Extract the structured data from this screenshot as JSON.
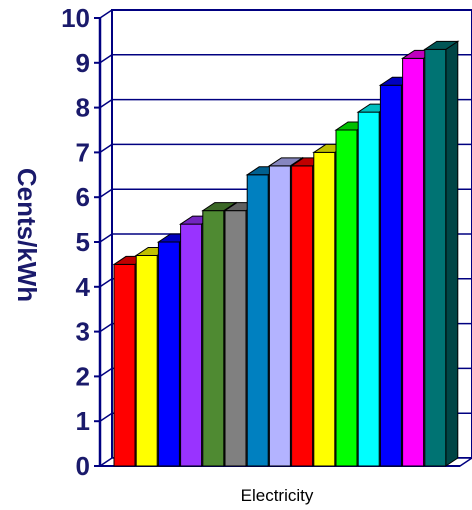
{
  "chart_data": {
    "type": "bar",
    "ylabel": "Cents/kWh",
    "xlabel": "",
    "category_label": "Electricity",
    "ylim": [
      0,
      10
    ],
    "yticks": [
      "0",
      "1",
      "2",
      "3",
      "4",
      "5",
      "6",
      "7",
      "8",
      "9",
      "10"
    ],
    "grid": true,
    "bars": [
      {
        "value": 4.5,
        "color": "#ff0000"
      },
      {
        "value": 4.7,
        "color": "#ffff00"
      },
      {
        "value": 5.0,
        "color": "#0000ff"
      },
      {
        "value": 5.4,
        "color": "#9933ff"
      },
      {
        "value": 5.7,
        "color": "#4f8a32"
      },
      {
        "value": 5.7,
        "color": "#808080"
      },
      {
        "value": 6.5,
        "color": "#0080c0"
      },
      {
        "value": 6.7,
        "color": "#b3b3ff"
      },
      {
        "value": 6.7,
        "color": "#ff0000"
      },
      {
        "value": 7.0,
        "color": "#ffff00"
      },
      {
        "value": 7.5,
        "color": "#00ff00"
      },
      {
        "value": 7.9,
        "color": "#00ffff"
      },
      {
        "value": 8.5,
        "color": "#0000ff"
      },
      {
        "value": 9.1,
        "color": "#ff00ff"
      },
      {
        "value": 9.3,
        "color": "#007373"
      }
    ]
  }
}
